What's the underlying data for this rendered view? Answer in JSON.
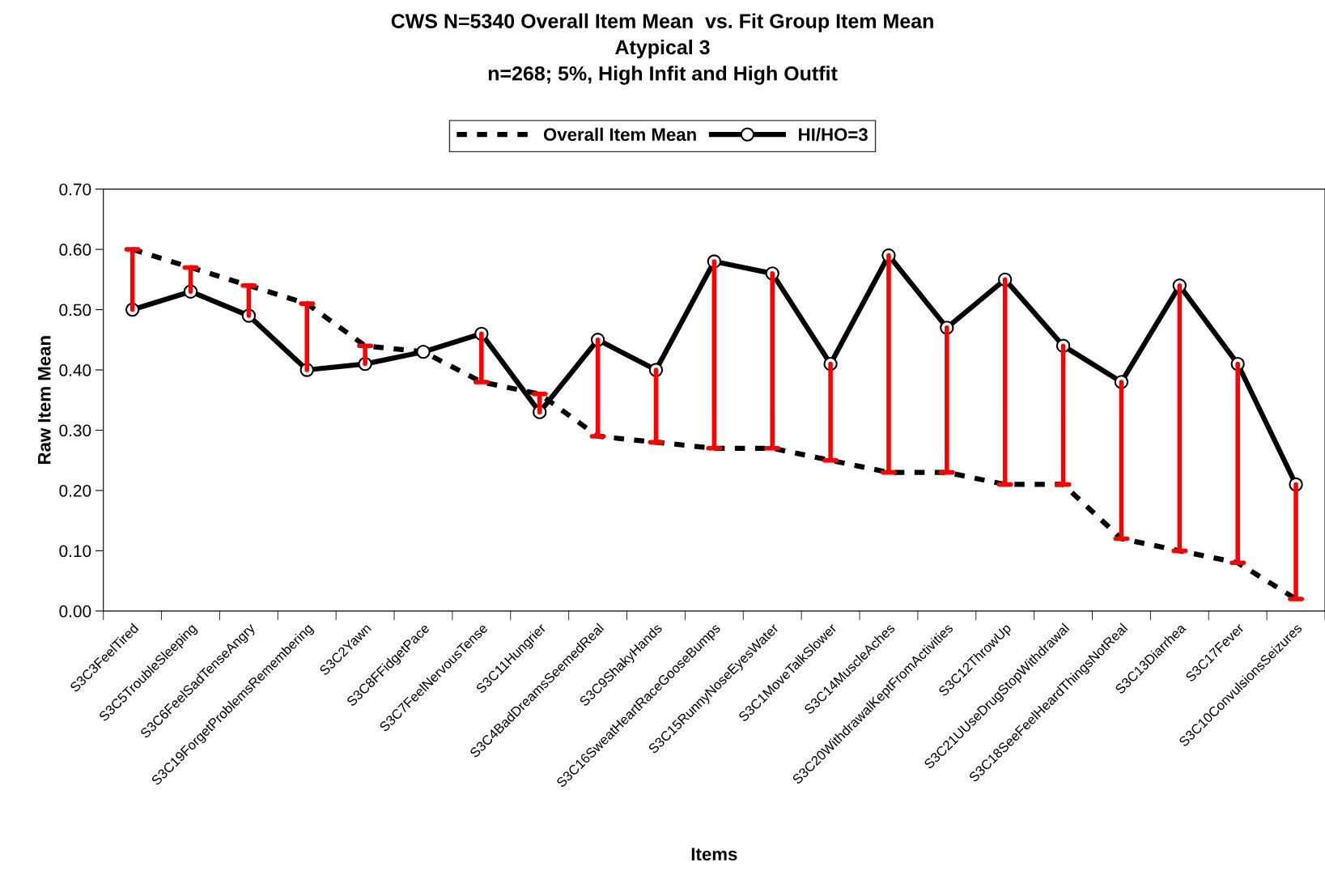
{
  "chart_data": {
    "type": "line",
    "title": "CWS N=5340 Overall Item Mean  vs. Fit Group Item Mean\nAtypical 3\nn=268; 5%, High Infit and High Outfit",
    "xlabel": "Items",
    "ylabel": "Raw Item Mean",
    "categories": [
      "S3C3FeelTired",
      "S3C5TroubleSleeping",
      "S3C6FeelSadTenseAngry",
      "S3C19ForgetProblemsRemembering",
      "S3C2Yawn",
      "S3C8FFidgetPace",
      "S3C7FeelNervousTense",
      "S3C11Hungrier",
      "S3C4BadDreamsSeemedReal",
      "S3C9ShakyHands",
      "S3C16SweatHeartRaceGooseBumps",
      "S3C15RunnyNoseEyesWater",
      "S3C1MoveTalkSlower",
      "S3C14MuscleAches",
      "S3C20WithdrawalKeptFromActivities",
      "S3C12ThrowUp",
      "S3C21UUseDrugStopWithdrawal",
      "S3C18SeeFeelHeardThingsNotReal",
      "S3C13Diarrhea",
      "S3C17Fever",
      "S3C10ConvulsionsSeizures"
    ],
    "series": [
      {
        "name": "Overall Item Mean",
        "color": "#000000",
        "line_style": "dashed",
        "marker": "none",
        "values": [
          0.6,
          0.57,
          0.54,
          0.51,
          0.44,
          0.43,
          0.38,
          0.36,
          0.29,
          0.28,
          0.27,
          0.27,
          0.25,
          0.23,
          0.23,
          0.21,
          0.21,
          0.12,
          0.1,
          0.08,
          0.02
        ],
        "errors": [
          [
            0.5,
            0.6
          ],
          [
            0.53,
            0.57
          ],
          [
            0.49,
            0.54
          ],
          [
            0.4,
            0.51
          ],
          [
            0.41,
            0.44
          ],
          null,
          [
            0.38,
            0.46
          ],
          [
            0.33,
            0.36
          ],
          [
            0.29,
            0.45
          ],
          [
            0.28,
            0.4
          ],
          [
            0.27,
            0.58
          ],
          [
            0.27,
            0.56
          ],
          [
            0.25,
            0.41
          ],
          [
            0.23,
            0.59
          ],
          [
            0.23,
            0.47
          ],
          [
            0.21,
            0.55
          ],
          [
            0.21,
            0.44
          ],
          [
            0.12,
            0.38
          ],
          [
            0.1,
            0.54
          ],
          [
            0.08,
            0.41
          ],
          [
            0.02,
            0.21
          ]
        ]
      },
      {
        "name": "HI/HO=3",
        "color": "#000000",
        "line_style": "solid",
        "marker": "circle",
        "values": [
          0.5,
          0.53,
          0.49,
          0.4,
          0.41,
          0.43,
          0.46,
          0.33,
          0.45,
          0.4,
          0.58,
          0.56,
          0.41,
          0.59,
          0.47,
          0.55,
          0.44,
          0.38,
          0.54,
          0.41,
          0.21
        ]
      }
    ],
    "ylim": [
      0,
      0.7
    ],
    "yticks": [
      {
        "value": 0,
        "label": "0.00"
      },
      {
        "value": 0.1,
        "label": "0.10"
      },
      {
        "value": 0.2,
        "label": "0.20"
      },
      {
        "value": 0.3,
        "label": "0.30"
      },
      {
        "value": 0.4,
        "label": "0.40"
      },
      {
        "value": 0.5,
        "label": "0.50"
      },
      {
        "value": 0.6,
        "label": "0.60"
      },
      {
        "value": 0.7,
        "label": "0.70"
      }
    ],
    "grid": false,
    "legend": "top"
  }
}
